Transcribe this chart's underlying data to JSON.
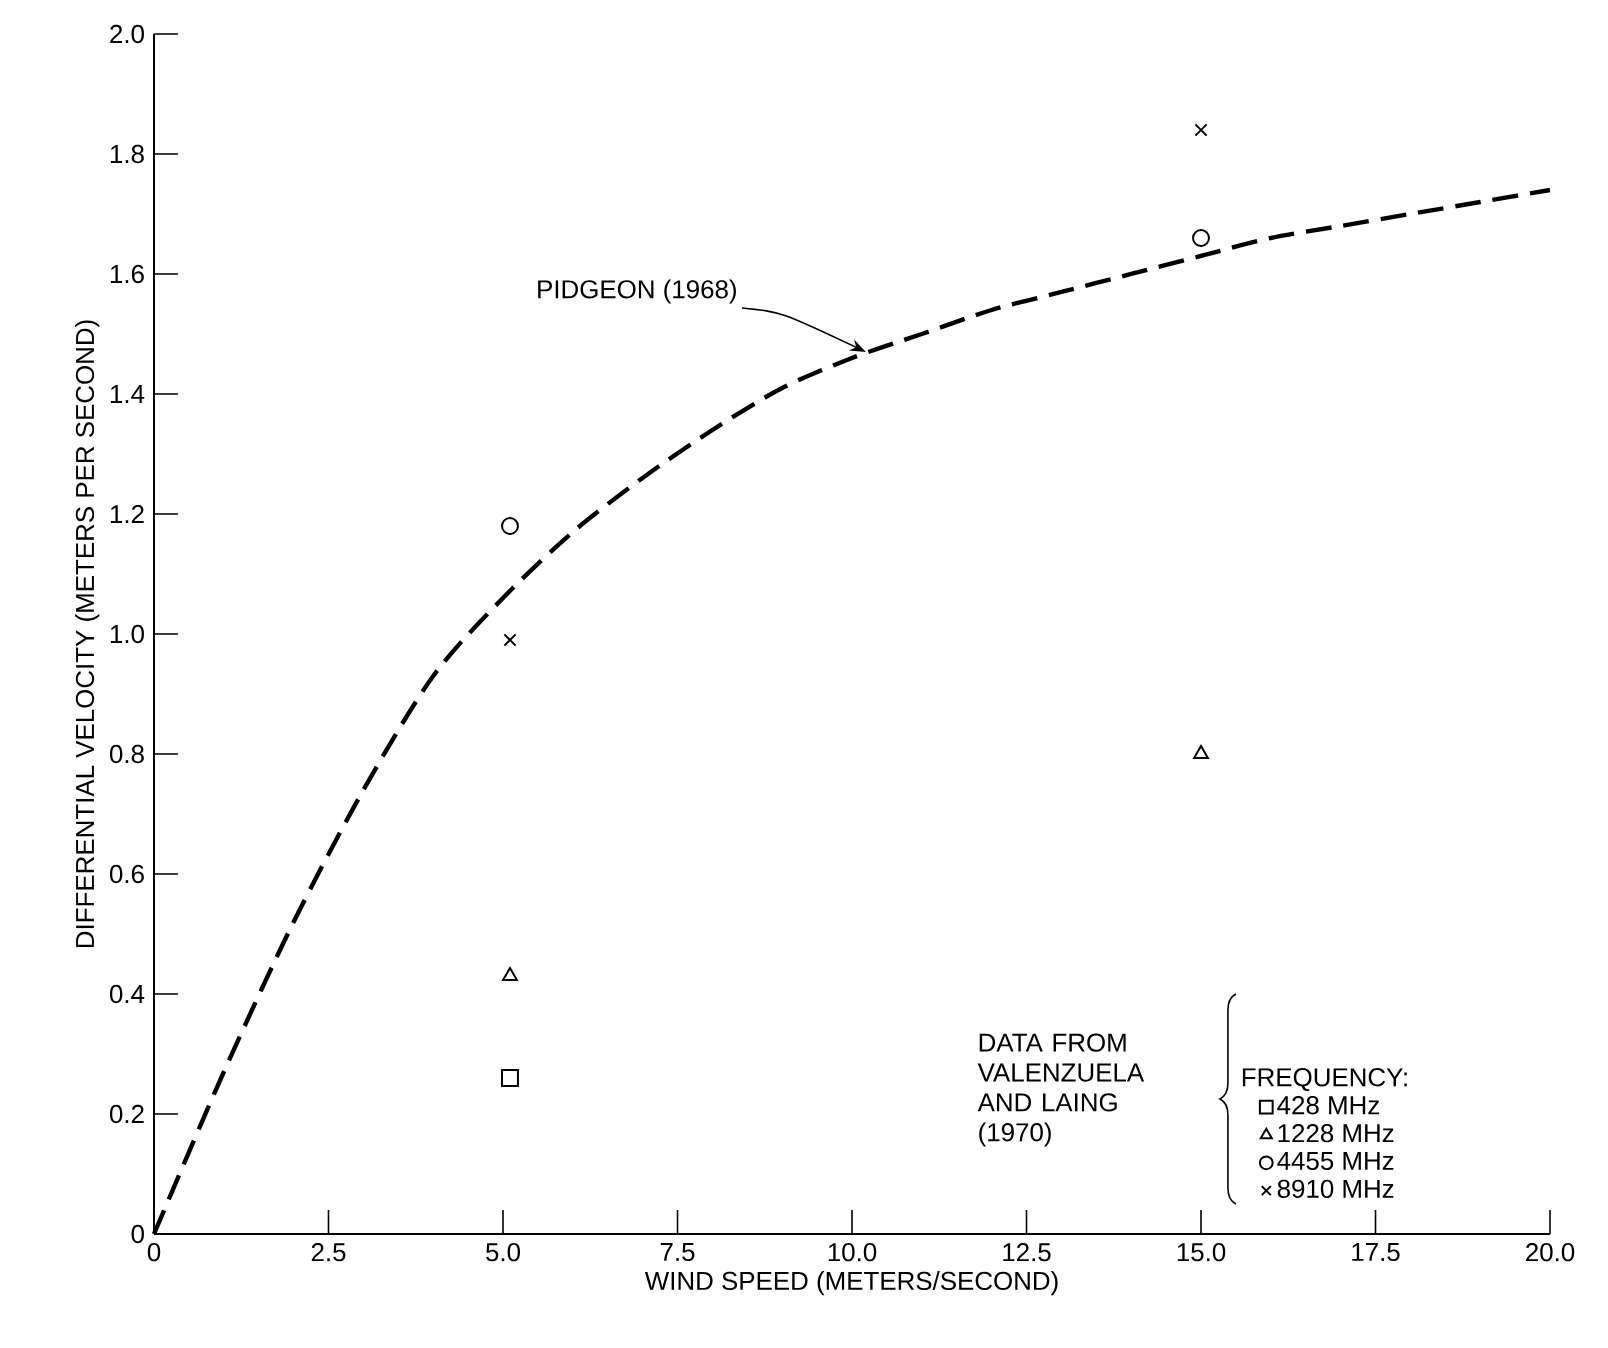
{
  "chart_data": {
    "type": "scatter",
    "xlabel": "WIND SPEED (METERS/SECOND)",
    "ylabel": "DIFFERENTIAL VELOCITY (METERS PER SECOND)",
    "legend_title": "FREQUENCY:",
    "legend": "bottom right",
    "grid": false,
    "xlim": [
      0,
      20
    ],
    "ylim": [
      0,
      2.0
    ],
    "xticks": [
      0,
      2.5,
      {
        "value": 5,
        "label": "5.0"
      },
      7.5,
      {
        "value": 10,
        "label": "10.0"
      },
      12.5,
      {
        "value": 15,
        "label": "15.0"
      },
      17.5,
      {
        "value": 20,
        "label": "20.0"
      }
    ],
    "yticks": [
      0,
      0.2,
      0.4,
      0.6,
      0.8,
      {
        "value": 1,
        "label": "1.0"
      },
      1.2,
      1.4,
      1.6,
      1.8,
      {
        "value": 2,
        "label": "2.0"
      }
    ],
    "series": [
      {
        "name": "428 MHz",
        "color": "#000000",
        "marker": "square",
        "x": [
          5.1
        ],
        "values": [
          0.26
        ]
      },
      {
        "name": "1228 MHz",
        "color": "#000000",
        "marker": "triangle",
        "x": [
          5.1,
          15.0
        ],
        "values": [
          0.43,
          0.8
        ]
      },
      {
        "name": "4455 MHz",
        "color": "#000000",
        "marker": "circle",
        "x": [
          5.1,
          15.0
        ],
        "values": [
          1.18,
          1.66
        ]
      },
      {
        "name": "8910 MHz",
        "color": "#000000",
        "marker": "cross",
        "x": [
          5.1,
          15.0
        ],
        "values": [
          0.99,
          1.84
        ]
      },
      {
        "type": "line",
        "color": "#000000",
        "line_style": "dashed",
        "marker": "none",
        "x": [
          0,
          1,
          2,
          3,
          4,
          5,
          6,
          7,
          8,
          9,
          10,
          11,
          12,
          13,
          14,
          15,
          16,
          17,
          18,
          19,
          20
        ],
        "values": [
          0,
          0.27,
          0.52,
          0.74,
          0.93,
          1.06,
          1.17,
          1.26,
          1.34,
          1.41,
          1.46,
          1.5,
          1.54,
          1.57,
          1.6,
          1.63,
          1.66,
          1.68,
          1.7,
          1.72,
          1.74
        ]
      }
    ],
    "annotations": [
      {
        "text": "PIDGEON (1968)",
        "x": 10.2,
        "y": 1.47
      },
      "DATA FROM VALENZUELA AND LAING (1970)"
    ]
  }
}
